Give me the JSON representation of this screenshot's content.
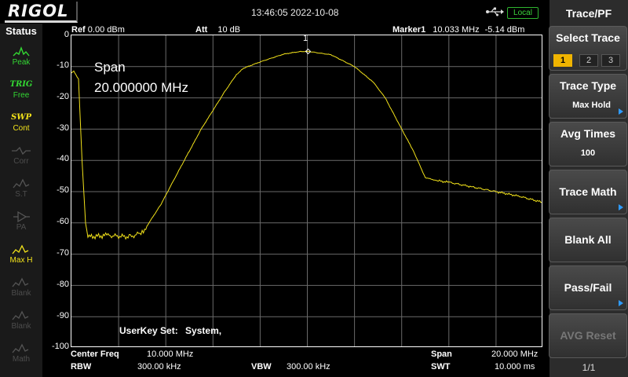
{
  "header": {
    "logo": "RIGOL",
    "datetime": "13:46:05 2022-10-08",
    "local_label": "Local"
  },
  "status": {
    "title": "Status",
    "items": [
      {
        "top": "",
        "label": "Peak",
        "icon": "peak-icon"
      },
      {
        "top": "TRIG",
        "label": "Free",
        "icon": "trig-icon"
      },
      {
        "top": "SWP",
        "label": "Cont",
        "icon": "sweep-icon"
      },
      {
        "top": "",
        "label": "Corr",
        "icon": "corr-icon"
      },
      {
        "top": "",
        "label": "S.T",
        "icon": "st-icon"
      },
      {
        "top": "",
        "label": "PA",
        "icon": "pa-icon"
      },
      {
        "top": "",
        "label": "Max H",
        "icon": "max-hold-icon"
      },
      {
        "top": "",
        "label": "Blank",
        "icon": "blank-icon"
      },
      {
        "top": "",
        "label": "Blank",
        "icon": "blank-icon"
      },
      {
        "top": "",
        "label": "Math",
        "icon": "math-icon"
      }
    ]
  },
  "spectrum": {
    "ref_label": "Ref",
    "ref_value": "0.00 dBm",
    "att_label": "Att",
    "att_value": "10 dB",
    "marker_label": "Marker1",
    "marker_freq": "10.033 MHz",
    "marker_level": "-5.14 dBm",
    "marker_number": "1",
    "span_label": "Span",
    "span_value": "20.000000 MHz",
    "userkey_label": "UserKey Set:",
    "userkey_value": "System,",
    "y_ticks": [
      "0",
      "-10",
      "-20",
      "-30",
      "-40",
      "-50",
      "-60",
      "-70",
      "-80",
      "-90",
      "-100"
    ],
    "trace_color": "#f2e21a"
  },
  "bottom": {
    "center_label": "Center Freq",
    "center_value": "10.000 MHz",
    "rbw_label": "RBW",
    "rbw_value": "300.00 kHz",
    "vbw_label": "VBW",
    "vbw_value": "300.00 kHz",
    "span_label": "Span",
    "span_value": "20.000 MHz",
    "swt_label": "SWT",
    "swt_value": "10.000 ms"
  },
  "menu": {
    "title": "Trace/PF",
    "select_trace": "Select Trace",
    "traces": [
      "1",
      "2",
      "3"
    ],
    "trace_type": "Trace Type",
    "trace_type_value": "Max Hold",
    "avg_times": "Avg Times",
    "avg_times_value": "100",
    "trace_math": "Trace Math",
    "blank_all": "Blank All",
    "pass_fail": "Pass/Fail",
    "avg_reset": "AVG Reset",
    "page": "1/1"
  },
  "chart_data": {
    "type": "line",
    "xlabel": "",
    "ylabel": "",
    "xlim": [
      0,
      20
    ],
    "ylim": [
      -100,
      0
    ],
    "grid": true,
    "series": [
      {
        "x": [
          0,
          0.1,
          0.3,
          0.45,
          0.6,
          0.7,
          1.5,
          2.5,
          3.0,
          3.2,
          3.8,
          4.5,
          5.5,
          6.5,
          7.0,
          7.3,
          8.0,
          9.0,
          9.67,
          10.033,
          11.0,
          12.0,
          12.8,
          13.3,
          14.0,
          14.5,
          15.0,
          15.5,
          16.0,
          17.0,
          18.0,
          19.0,
          20.0
        ],
        "y": [
          -12,
          -11.5,
          -14,
          -40,
          -60,
          -64.5,
          -64,
          -64.5,
          -63,
          -61,
          -54,
          -44,
          -30,
          -18,
          -12.5,
          -10.5,
          -8.5,
          -6,
          -5.2,
          -5.14,
          -6.2,
          -10,
          -15,
          -20,
          -30,
          -37,
          -45.5,
          -46.5,
          -47,
          -48.5,
          -50,
          -51.5,
          -53.5
        ]
      }
    ]
  }
}
